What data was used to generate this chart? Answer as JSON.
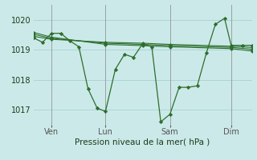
{
  "background_color": "#cce9e9",
  "grid_color": "#aad4d4",
  "line_color": "#2d6e2d",
  "marker_color": "#2d6e2d",
  "xlabel": "Pression niveau de la mer( hPa )",
  "ylim": [
    1016.5,
    1020.5
  ],
  "yticks": [
    1017,
    1018,
    1019,
    1020
  ],
  "xlim": [
    0,
    1.0
  ],
  "x_tick_positions": [
    0.083,
    0.33,
    0.625,
    0.905
  ],
  "x_tick_labels": [
    "Ven",
    "Lun",
    "Sam",
    "Dim"
  ],
  "figsize": [
    3.2,
    2.0
  ],
  "dpi": 100,
  "series_main": {
    "x": [
      0.0,
      0.042,
      0.083,
      0.125,
      0.167,
      0.208,
      0.25,
      0.292,
      0.33,
      0.375,
      0.417,
      0.458,
      0.5,
      0.542,
      0.583,
      0.625,
      0.667,
      0.708,
      0.75,
      0.792,
      0.833,
      0.875,
      0.905,
      0.958,
      1.0
    ],
    "y": [
      1019.4,
      1019.25,
      1019.55,
      1019.55,
      1019.3,
      1019.1,
      1017.7,
      1017.05,
      1016.95,
      1018.35,
      1018.85,
      1018.75,
      1019.2,
      1019.1,
      1016.6,
      1016.85,
      1017.75,
      1017.75,
      1017.8,
      1018.9,
      1019.85,
      1020.05,
      1019.15,
      1019.15,
      1019.15
    ]
  },
  "series_flat1": {
    "x": [
      0.0,
      0.083,
      0.33,
      0.5,
      0.625,
      0.905,
      1.0
    ],
    "y": [
      1019.45,
      1019.35,
      1019.25,
      1019.22,
      1019.18,
      1019.12,
      1019.08
    ]
  },
  "series_flat2": {
    "x": [
      0.0,
      0.083,
      0.33,
      0.5,
      0.625,
      0.905,
      1.0
    ],
    "y": [
      1019.52,
      1019.38,
      1019.22,
      1019.18,
      1019.14,
      1019.08,
      1019.02
    ]
  },
  "series_flat3": {
    "x": [
      0.0,
      0.083,
      0.33,
      0.5,
      0.625,
      0.905,
      1.0
    ],
    "y": [
      1019.58,
      1019.42,
      1019.18,
      1019.14,
      1019.1,
      1019.04,
      1018.96
    ]
  }
}
